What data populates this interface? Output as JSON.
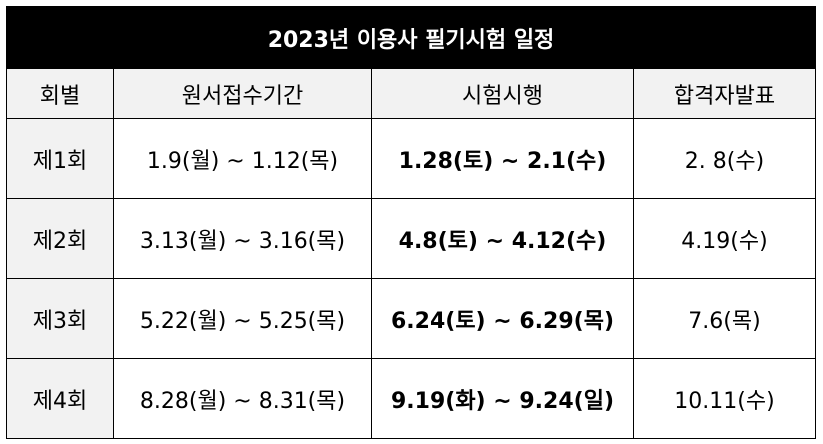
{
  "title": "2023년 이용사 필기시험 일정",
  "table": {
    "header": [
      "회별",
      "원서접수기간",
      "시험시행",
      "합격자발표"
    ],
    "rows": [
      [
        "제1회",
        "1.9(월) ~ 1.12(목)",
        "1.28(토) ~ 2.1(수)",
        "2. 8(수)"
      ],
      [
        "제2회",
        "3.13(월) ~ 3.16(목)",
        "4.8(토) ~ 4.12(수)",
        "4.19(수)"
      ],
      [
        "제3회",
        "5.22(월) ~ 5.25(목)",
        "6.24(토) ~ 6.29(목)",
        "7.6(목)"
      ],
      [
        "제4회",
        "8.28(월) ~ 8.31(목)",
        "9.19(화) ~ 9.24(일)",
        "10.11(수)"
      ]
    ]
  }
}
